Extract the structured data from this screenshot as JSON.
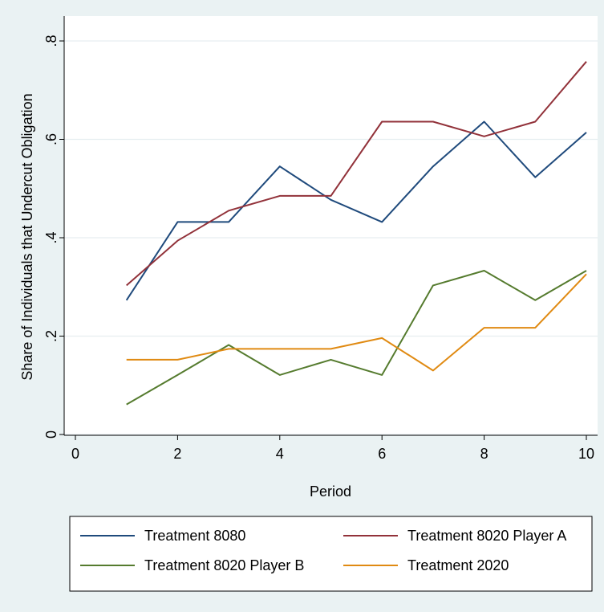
{
  "chart_data": {
    "type": "line",
    "title": "",
    "xlabel": "Period",
    "ylabel": "Share of Individuals that Undercut Obligation",
    "xlim": [
      0,
      10
    ],
    "ylim": [
      0,
      0.8
    ],
    "xticks": [
      0,
      2,
      4,
      6,
      8,
      10
    ],
    "xtick_labels": [
      "0",
      "2",
      "4",
      "6",
      "8",
      "10"
    ],
    "yticks": [
      0,
      0.2,
      0.4,
      0.6,
      0.8
    ],
    "ytick_labels": [
      "0",
      ".2",
      ".4",
      ".6",
      ".8"
    ],
    "grid": true,
    "legend_position": "bottom",
    "x": [
      1,
      2,
      3,
      4,
      5,
      6,
      7,
      8,
      9,
      10
    ],
    "series": [
      {
        "name": "Treatment 8080",
        "color": "#1f4a7c",
        "values": [
          0.273,
          0.432,
          0.432,
          0.545,
          0.477,
          0.432,
          0.545,
          0.636,
          0.523,
          0.614
        ]
      },
      {
        "name": "Treatment 8020 Player A",
        "color": "#92323a",
        "values": [
          0.303,
          0.394,
          0.455,
          0.485,
          0.485,
          0.636,
          0.636,
          0.606,
          0.636,
          0.758
        ]
      },
      {
        "name": "Treatment 8020 Player B",
        "color": "#557b2e",
        "values": [
          0.061,
          0.121,
          0.182,
          0.121,
          0.152,
          0.121,
          0.303,
          0.333,
          0.273,
          0.333
        ]
      },
      {
        "name": "Treatment 2020",
        "color": "#e08a12",
        "values": [
          0.152,
          0.152,
          0.174,
          0.174,
          0.174,
          0.196,
          0.13,
          0.217,
          0.217,
          0.326
        ]
      }
    ]
  },
  "colors": {
    "background": "#eaf2f3",
    "plot_background": "#ffffff",
    "grid": "#e6eef0",
    "axis": "#000000"
  }
}
